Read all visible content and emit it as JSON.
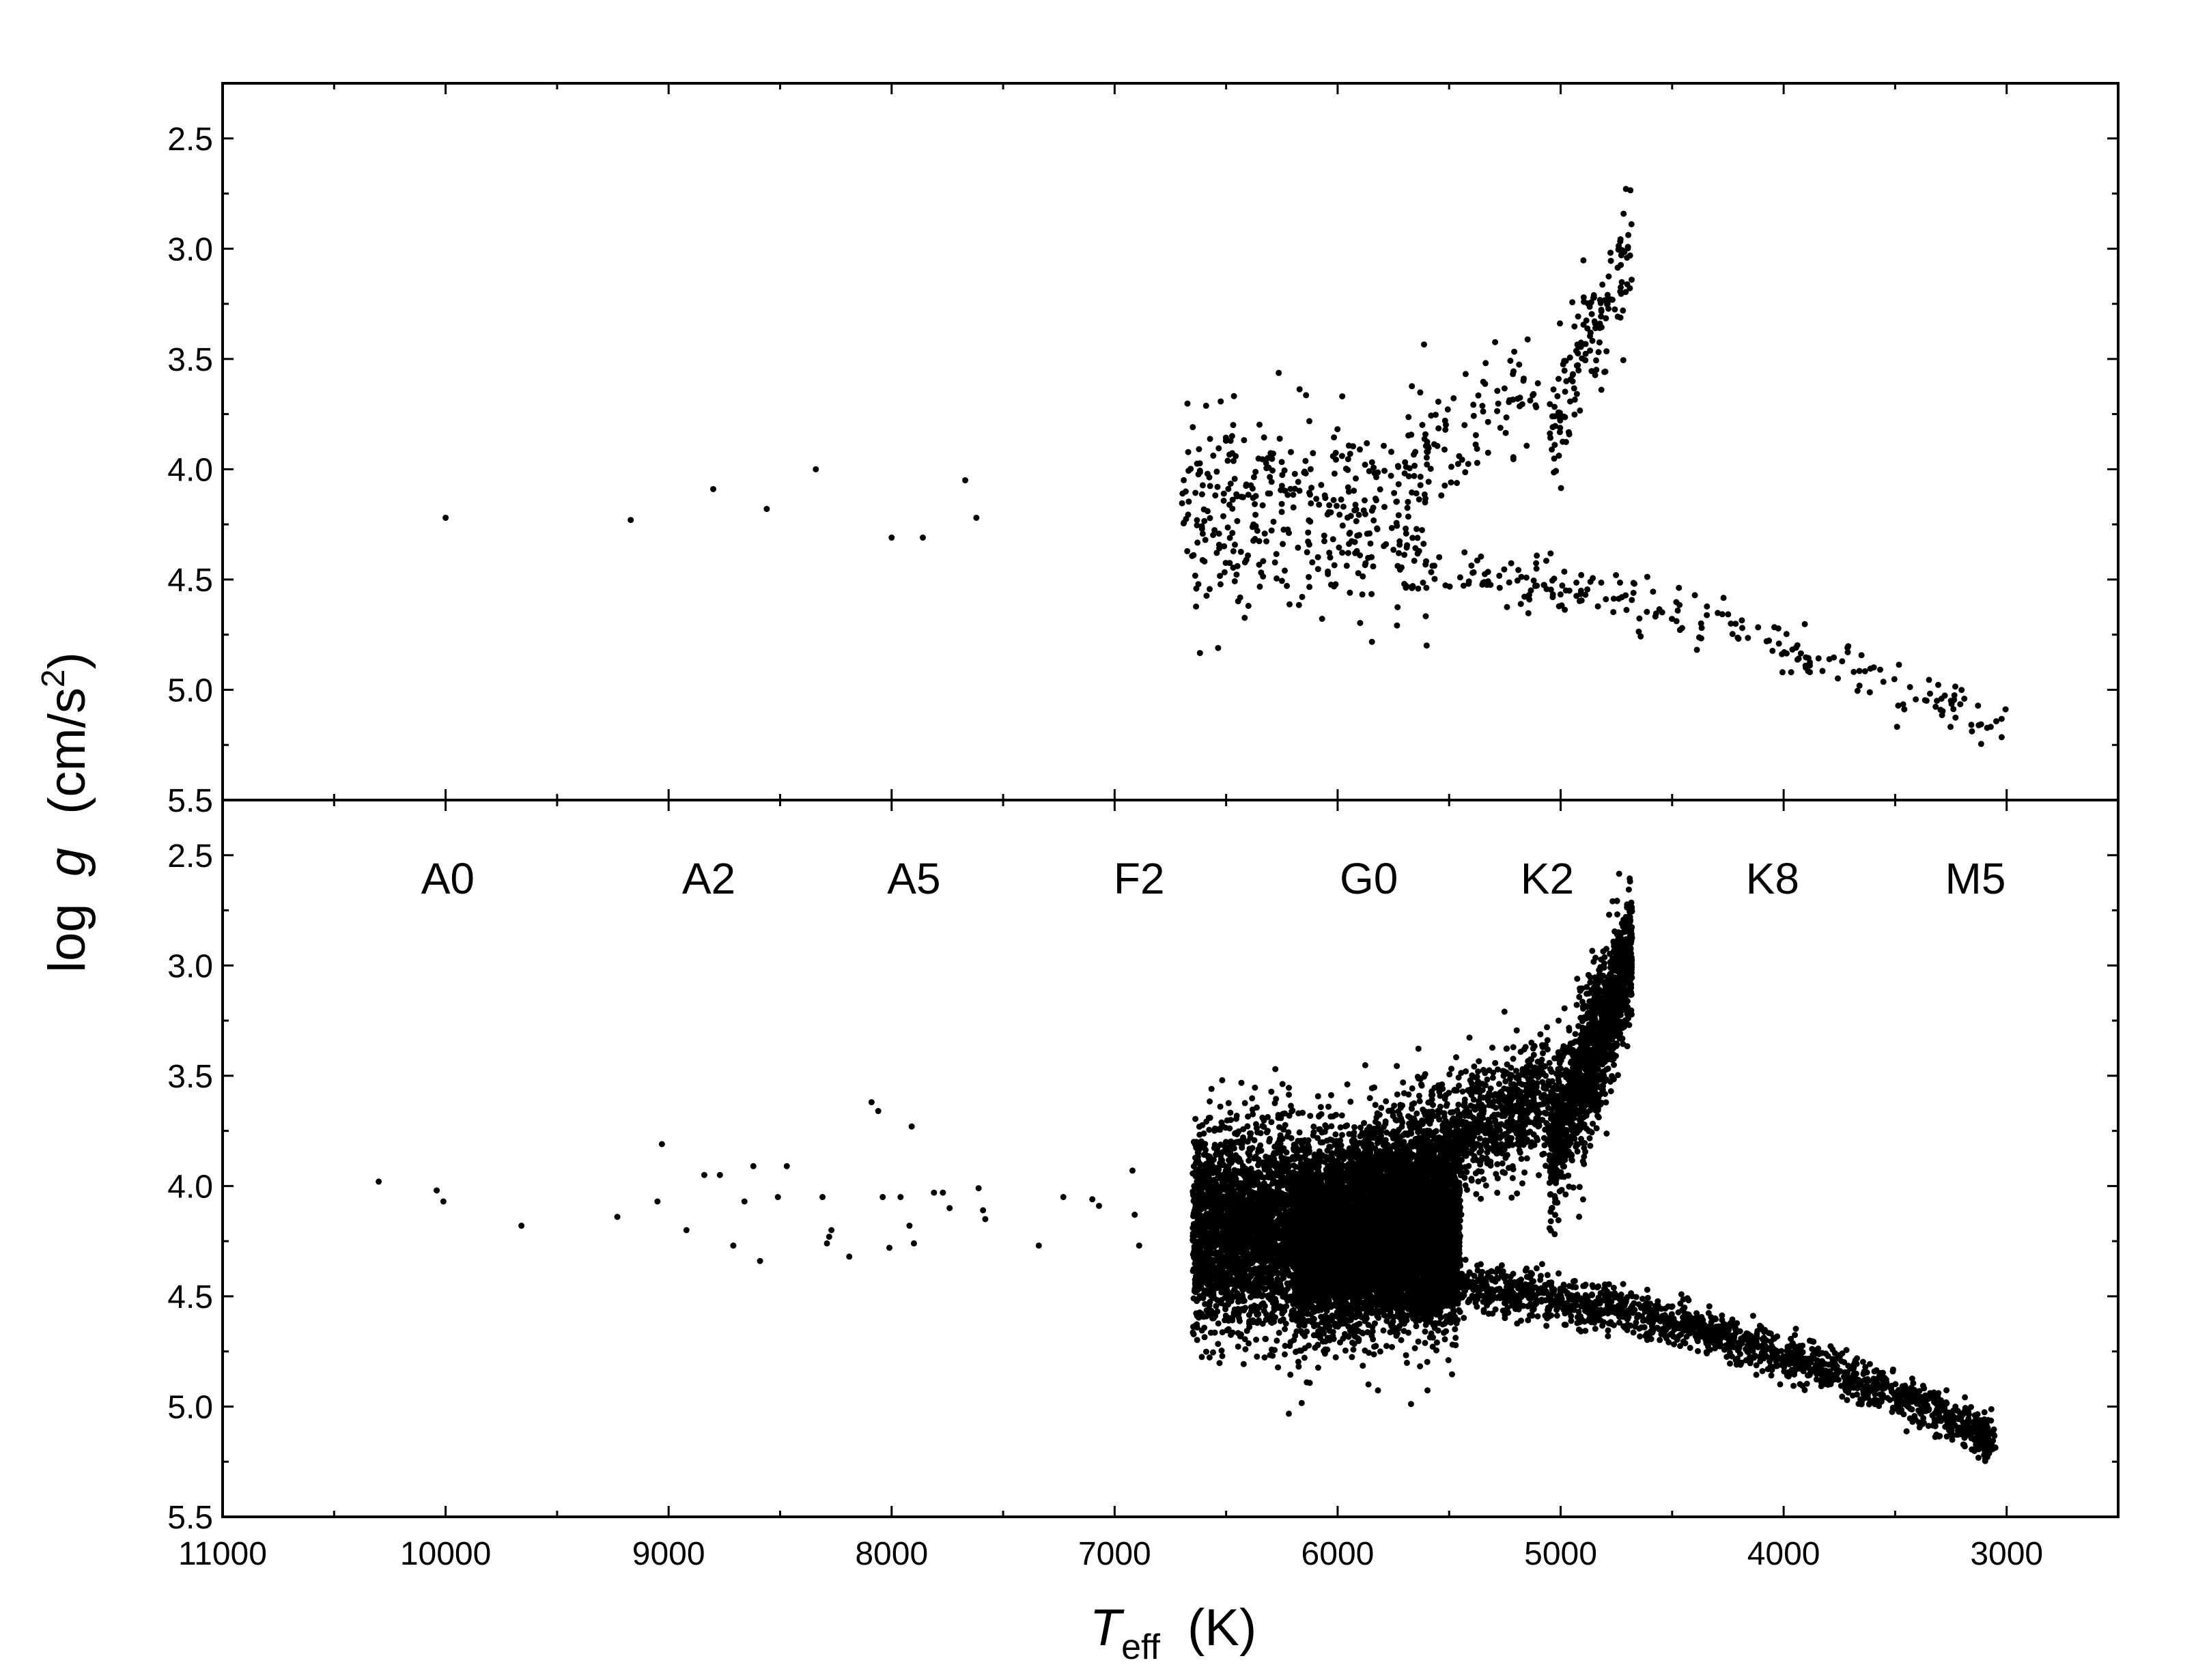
{
  "chart_data": [
    {
      "type": "scatter",
      "panel": "top",
      "xlim": [
        11000,
        2500
      ],
      "ylim": [
        5.5,
        2.25
      ],
      "y_ticks": [
        "2.5",
        "3.0",
        "3.5",
        "4.0",
        "4.5",
        "5.0",
        "5.5"
      ],
      "y_tick_values": [
        2.5,
        3.0,
        3.5,
        4.0,
        4.5,
        5.0,
        5.5
      ],
      "marker_color": "#000000",
      "grid": false,
      "points": [
        [
          10000,
          4.22
        ],
        [
          9170,
          4.23
        ],
        [
          8800,
          4.09
        ],
        [
          8560,
          4.18
        ],
        [
          8340,
          4.0
        ],
        [
          8000,
          4.31
        ],
        [
          7860,
          4.31
        ],
        [
          7670,
          4.05
        ],
        [
          7620,
          4.22
        ]
      ],
      "clusters": [
        {
          "region": "main-sequence-upper",
          "x_range": [
            5600,
            6700
          ],
          "y_center": 4.2,
          "y_spread": 0.22,
          "count": 380
        },
        {
          "region": "subgiant-branch",
          "x_range": [
            5100,
            5700
          ],
          "y_center": 3.85,
          "y_spread": 0.12,
          "count": 90
        },
        {
          "region": "giant-branch",
          "x_range": [
            4680,
            5050
          ],
          "y_center": 3.45,
          "y_spread": 0.25,
          "count": 150
        },
        {
          "region": "main-sequence-lower",
          "x_range": [
            3000,
            5700
          ],
          "y_from": 4.47,
          "y_to": 5.2,
          "y_spread": 0.06,
          "count": 230
        }
      ]
    },
    {
      "type": "scatter",
      "panel": "bottom",
      "xlim": [
        11000,
        2500
      ],
      "ylim": [
        5.5,
        2.25
      ],
      "y_ticks": [
        "2.5",
        "3.0",
        "3.5",
        "4.0",
        "4.5",
        "5.0",
        "5.5"
      ],
      "y_tick_values": [
        2.5,
        3.0,
        3.5,
        4.0,
        4.5,
        5.0,
        5.5
      ],
      "x_ticks": [
        "11000",
        "10000",
        "9000",
        "8000",
        "7000",
        "6000",
        "5000",
        "4000",
        "3000"
      ],
      "x_tick_values": [
        11000,
        10000,
        9000,
        8000,
        7000,
        6000,
        5000,
        4000,
        3000
      ],
      "xlabel_main": "T",
      "xlabel_sub": "eff",
      "xlabel_unit": "(K)",
      "marker_color": "#000000",
      "grid": false,
      "spectral_types": [
        "A0",
        "A2",
        "A5",
        "F2",
        "G0",
        "K2",
        "K8",
        "M5"
      ],
      "spectral_type_teff": [
        9990,
        8820,
        7900,
        6890,
        5860,
        5060,
        4050,
        3140
      ],
      "points": [
        [
          10300,
          3.98
        ],
        [
          10040,
          4.02
        ],
        [
          10010,
          4.07
        ],
        [
          9660,
          4.18
        ],
        [
          9230,
          4.14
        ],
        [
          9030,
          3.81
        ],
        [
          9050,
          4.07
        ],
        [
          8920,
          4.2
        ],
        [
          8840,
          3.95
        ],
        [
          8770,
          3.95
        ],
        [
          8710,
          4.27
        ],
        [
          8660,
          4.07
        ],
        [
          8620,
          3.91
        ],
        [
          8590,
          4.34
        ],
        [
          8510,
          4.05
        ],
        [
          8470,
          3.91
        ],
        [
          8310,
          4.05
        ],
        [
          8290,
          4.26
        ],
        [
          8280,
          4.23
        ],
        [
          8270,
          4.2
        ],
        [
          8190,
          4.32
        ],
        [
          8090,
          3.62
        ],
        [
          8060,
          3.66
        ],
        [
          8040,
          4.05
        ],
        [
          8010,
          4.28
        ],
        [
          7960,
          4.05
        ],
        [
          7920,
          4.18
        ],
        [
          7910,
          3.73
        ],
        [
          7900,
          4.26
        ],
        [
          7810,
          4.03
        ],
        [
          7770,
          4.03
        ],
        [
          7740,
          4.1
        ],
        [
          7610,
          4.01
        ],
        [
          7590,
          4.11
        ],
        [
          7580,
          4.15
        ],
        [
          7340,
          4.27
        ],
        [
          7230,
          4.05
        ],
        [
          7100,
          4.06
        ],
        [
          7070,
          4.09
        ],
        [
          6920,
          3.93
        ],
        [
          6910,
          4.13
        ],
        [
          6890,
          4.27
        ]
      ],
      "clusters": [
        {
          "region": "main-sequence-upper",
          "x_range": [
            5450,
            6650
          ],
          "y_center": 4.2,
          "y_spread": 0.22,
          "count": 6500
        },
        {
          "region": "turnoff-core",
          "x_range": [
            5500,
            6200
          ],
          "y_center": 4.25,
          "y_spread": 0.15,
          "count": 4500
        },
        {
          "region": "subgiant-branch",
          "x_range": [
            5050,
            5900
          ],
          "y_center": 3.85,
          "y_spread": 0.14,
          "count": 1200
        },
        {
          "region": "giant-branch",
          "x_range": [
            4680,
            5050
          ],
          "y_center": 3.45,
          "y_spread": 0.27,
          "count": 1500
        },
        {
          "region": "main-sequence-lower",
          "x_range": [
            3050,
            5700
          ],
          "y_from": 4.45,
          "y_to": 5.15,
          "y_spread": 0.05,
          "count": 1800
        }
      ]
    }
  ],
  "ylabel_main": "log",
  "ylabel_italic": "g",
  "ylabel_unit": "(cm/s",
  "ylabel_sup": "2",
  "ylabel_close": ")"
}
